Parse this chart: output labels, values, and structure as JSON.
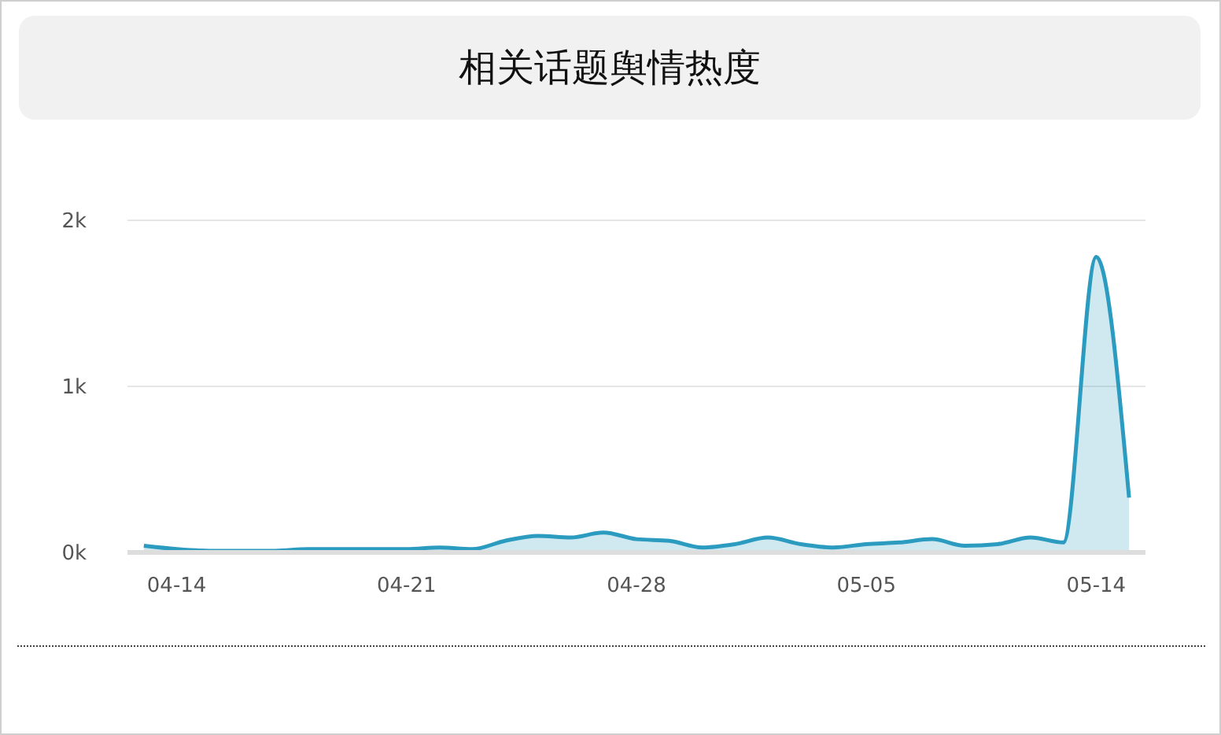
{
  "chart_data": {
    "type": "area",
    "title": "相关话题舆情热度",
    "categories": [
      null,
      "04-14",
      null,
      null,
      null,
      null,
      null,
      null,
      "04-21",
      null,
      null,
      null,
      null,
      null,
      null,
      "04-28",
      null,
      null,
      null,
      null,
      null,
      null,
      "05-05",
      null,
      null,
      null,
      null,
      null,
      null,
      "05-14",
      null
    ],
    "series": [
      {
        "color": "#2b9bc0",
        "values": [
          40,
          20,
          10,
          10,
          10,
          20,
          20,
          20,
          20,
          30,
          20,
          70,
          100,
          90,
          120,
          80,
          70,
          30,
          50,
          90,
          50,
          30,
          50,
          60,
          80,
          40,
          50,
          90,
          60,
          1780,
          330
        ]
      }
    ],
    "ylim": [
      0,
      2000
    ],
    "yticks": [
      {
        "value": 0,
        "label": "0k"
      },
      {
        "value": 1000,
        "label": "1k"
      },
      {
        "value": 2000,
        "label": "2k"
      }
    ],
    "grid": "y",
    "marker": "none"
  }
}
